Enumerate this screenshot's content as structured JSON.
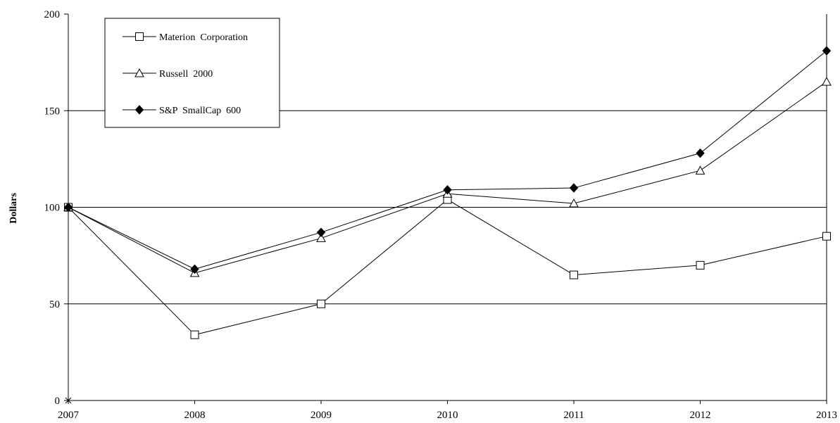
{
  "chart_data": {
    "type": "line",
    "title": "",
    "xlabel": "",
    "ylabel": "Dollars",
    "x": [
      "2007",
      "2008",
      "2009",
      "2010",
      "2011",
      "2012",
      "2013"
    ],
    "ylim": [
      0,
      200
    ],
    "yticks": [
      "0",
      "50",
      "100",
      "150",
      "200"
    ],
    "grid": "horizontal at 50, 100, 150",
    "legend_position": "top-left",
    "series": [
      {
        "name": "Materion  Corporation",
        "marker": "square-open",
        "color": "#000000",
        "values": [
          100,
          34,
          50,
          104,
          65,
          70,
          85
        ]
      },
      {
        "name": "Russell  2000",
        "marker": "triangle-open",
        "color": "#000000",
        "values": [
          100,
          66,
          84,
          107,
          102,
          119,
          165
        ]
      },
      {
        "name": "S&P  SmallCap  600",
        "marker": "diamond-filled",
        "color": "#000000",
        "values": [
          100,
          68,
          87,
          109,
          110,
          128,
          181
        ]
      }
    ]
  }
}
